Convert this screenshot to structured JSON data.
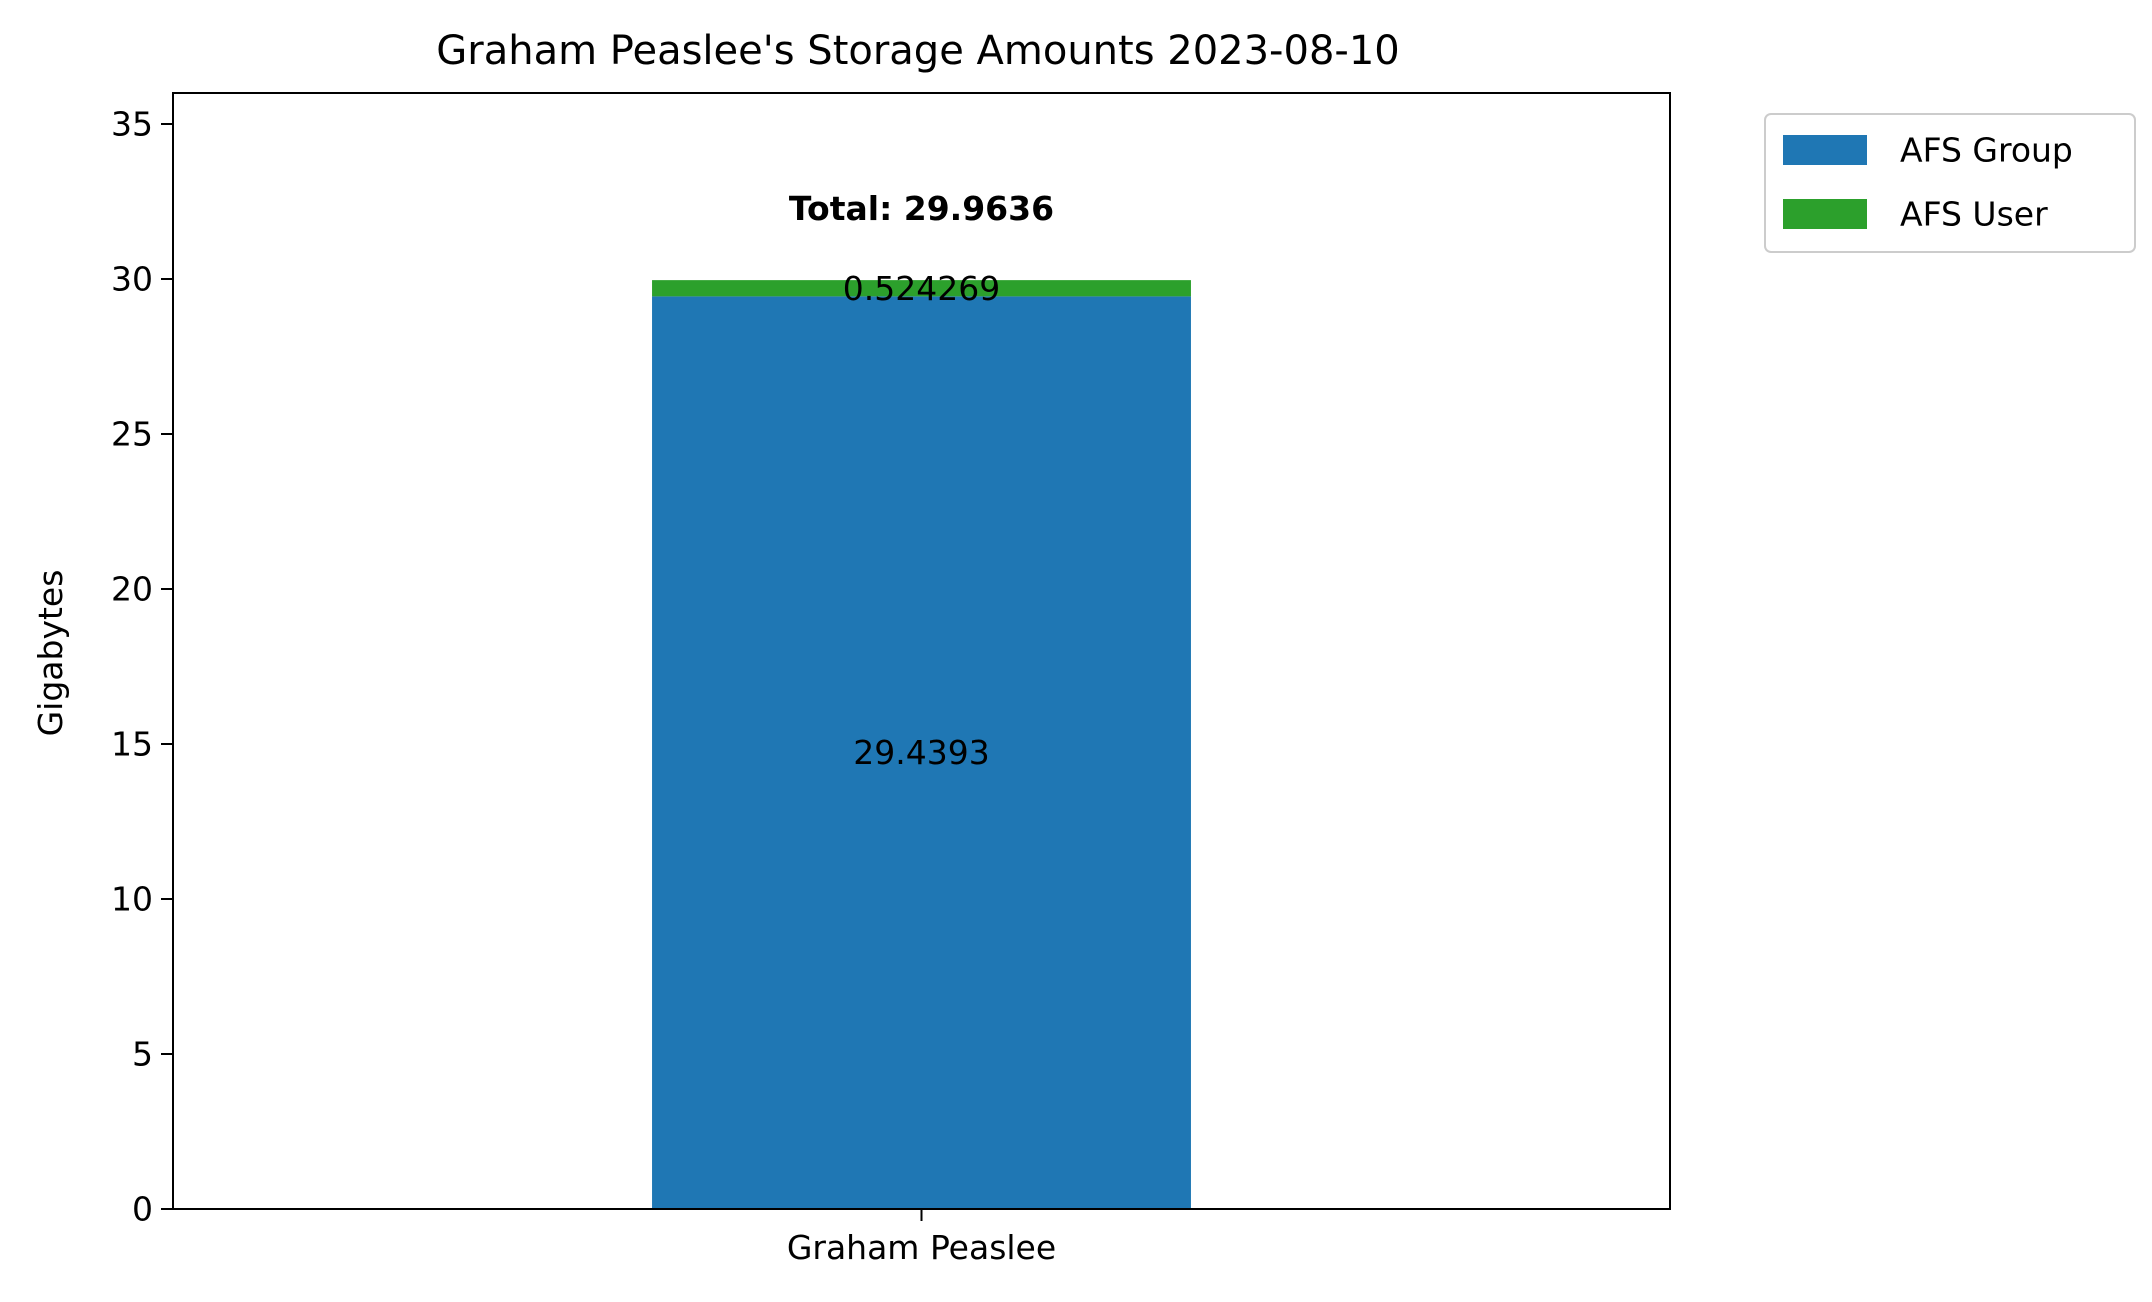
{
  "chart_data": {
    "type": "bar",
    "stacked": true,
    "title": "Graham Peaslee's Storage Amounts 2023-08-10",
    "xlabel": "",
    "ylabel": "Gigabytes",
    "categories": [
      "Graham Peaslee"
    ],
    "series": [
      {
        "name": "AFS Group",
        "values": [
          29.4393
        ],
        "color": "#1f77b4",
        "labels": [
          "29.4393"
        ]
      },
      {
        "name": "AFS User",
        "values": [
          0.524269
        ],
        "color": "#2ca02c",
        "labels": [
          "0.524269"
        ]
      }
    ],
    "totals": [
      "Total: 29.9636"
    ],
    "ylim": [
      0,
      36
    ],
    "yticks": [
      0,
      5,
      10,
      15,
      20,
      25,
      30,
      35
    ],
    "ytick_labels": [
      "0",
      "5",
      "10",
      "15",
      "20",
      "25",
      "30",
      "35"
    ],
    "grid": false,
    "legend_position": "outside-top-right"
  }
}
